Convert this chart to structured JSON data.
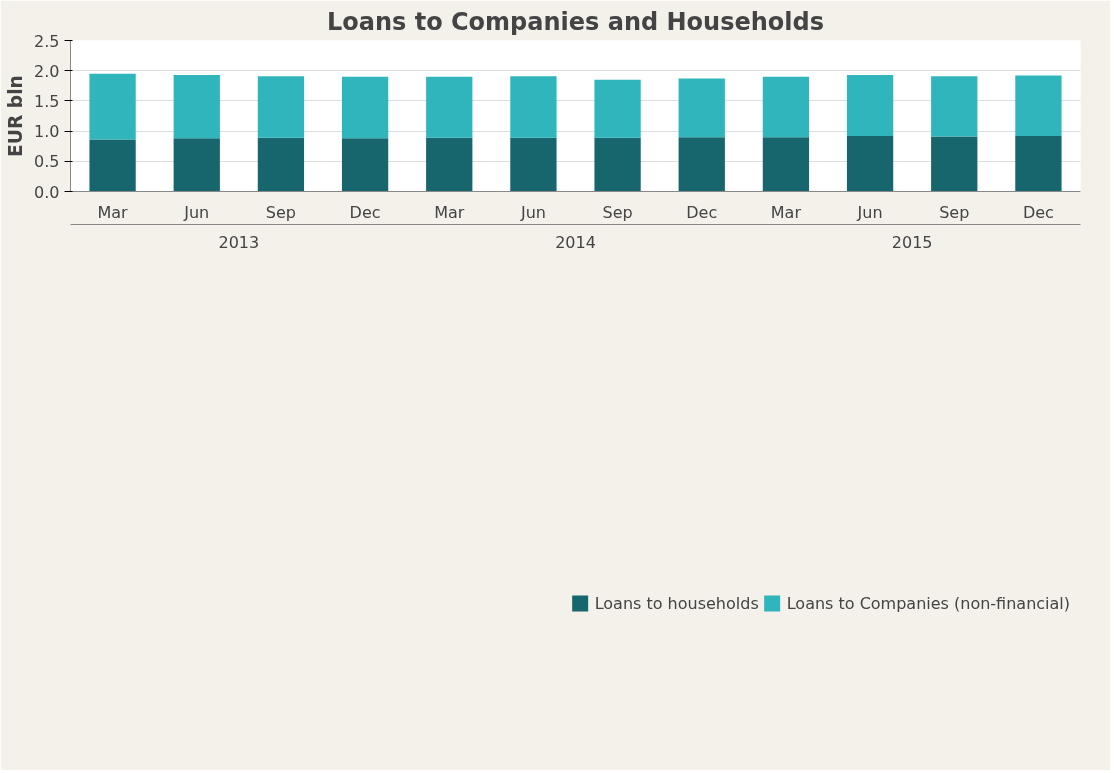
{
  "chart_data": {
    "type": "bar",
    "title": "Loans to Companies and Households",
    "ylabel": "EUR bln",
    "categories": [
      "Mar",
      "Jun",
      "Sep",
      "Dec",
      "Mar",
      "Jun",
      "Sep",
      "Dec",
      "Mar",
      "Jun",
      "Sep",
      "Dec"
    ],
    "annotations": [
      "2013",
      "2014",
      "2015"
    ],
    "stacked": true,
    "series": [
      {
        "name": "Loans to households",
        "color": "#17666d",
        "values": [
          0.86,
          0.88,
          0.89,
          0.88,
          0.89,
          0.89,
          0.89,
          0.9,
          0.9,
          0.92,
          0.91,
          0.92
        ]
      },
      {
        "name": "Loans to Companies (non-financial)",
        "color": "#31b5bd",
        "values": [
          1.09,
          1.05,
          1.02,
          1.02,
          1.01,
          1.02,
          0.96,
          0.97,
          1.0,
          1.01,
          1.0,
          1.0
        ]
      }
    ],
    "ylim": [
      0,
      2.5
    ],
    "yticks": [
      {
        "value": 0,
        "label": "0.0"
      },
      {
        "value": 0.5,
        "label": "0.5"
      },
      {
        "value": 1,
        "label": "1.0"
      },
      {
        "value": 1.5,
        "label": "1.5"
      },
      {
        "value": 2,
        "label": "2.0"
      },
      {
        "value": 2.5,
        "label": "2.5"
      }
    ],
    "grid": "y",
    "legend": "bottom"
  }
}
